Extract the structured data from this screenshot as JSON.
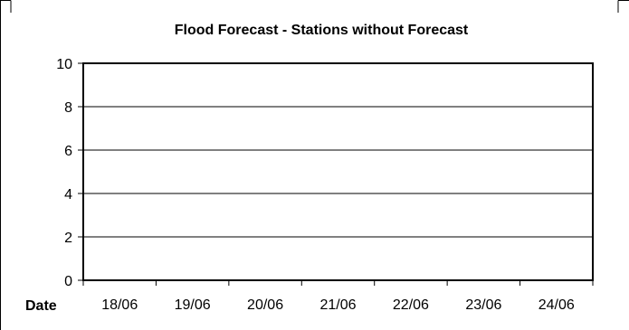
{
  "chart_data": {
    "type": "line",
    "title": "Flood Forecast - Stations without Forecast",
    "xlabel": "Date",
    "ylabel": "",
    "categories": [
      "18/06",
      "19/06",
      "20/06",
      "21/06",
      "22/06",
      "23/06",
      "24/06"
    ],
    "series": [],
    "ylim": [
      0,
      10
    ],
    "yticks": [
      0,
      2,
      4,
      6,
      8,
      10
    ],
    "grid": true,
    "legend": "none"
  }
}
